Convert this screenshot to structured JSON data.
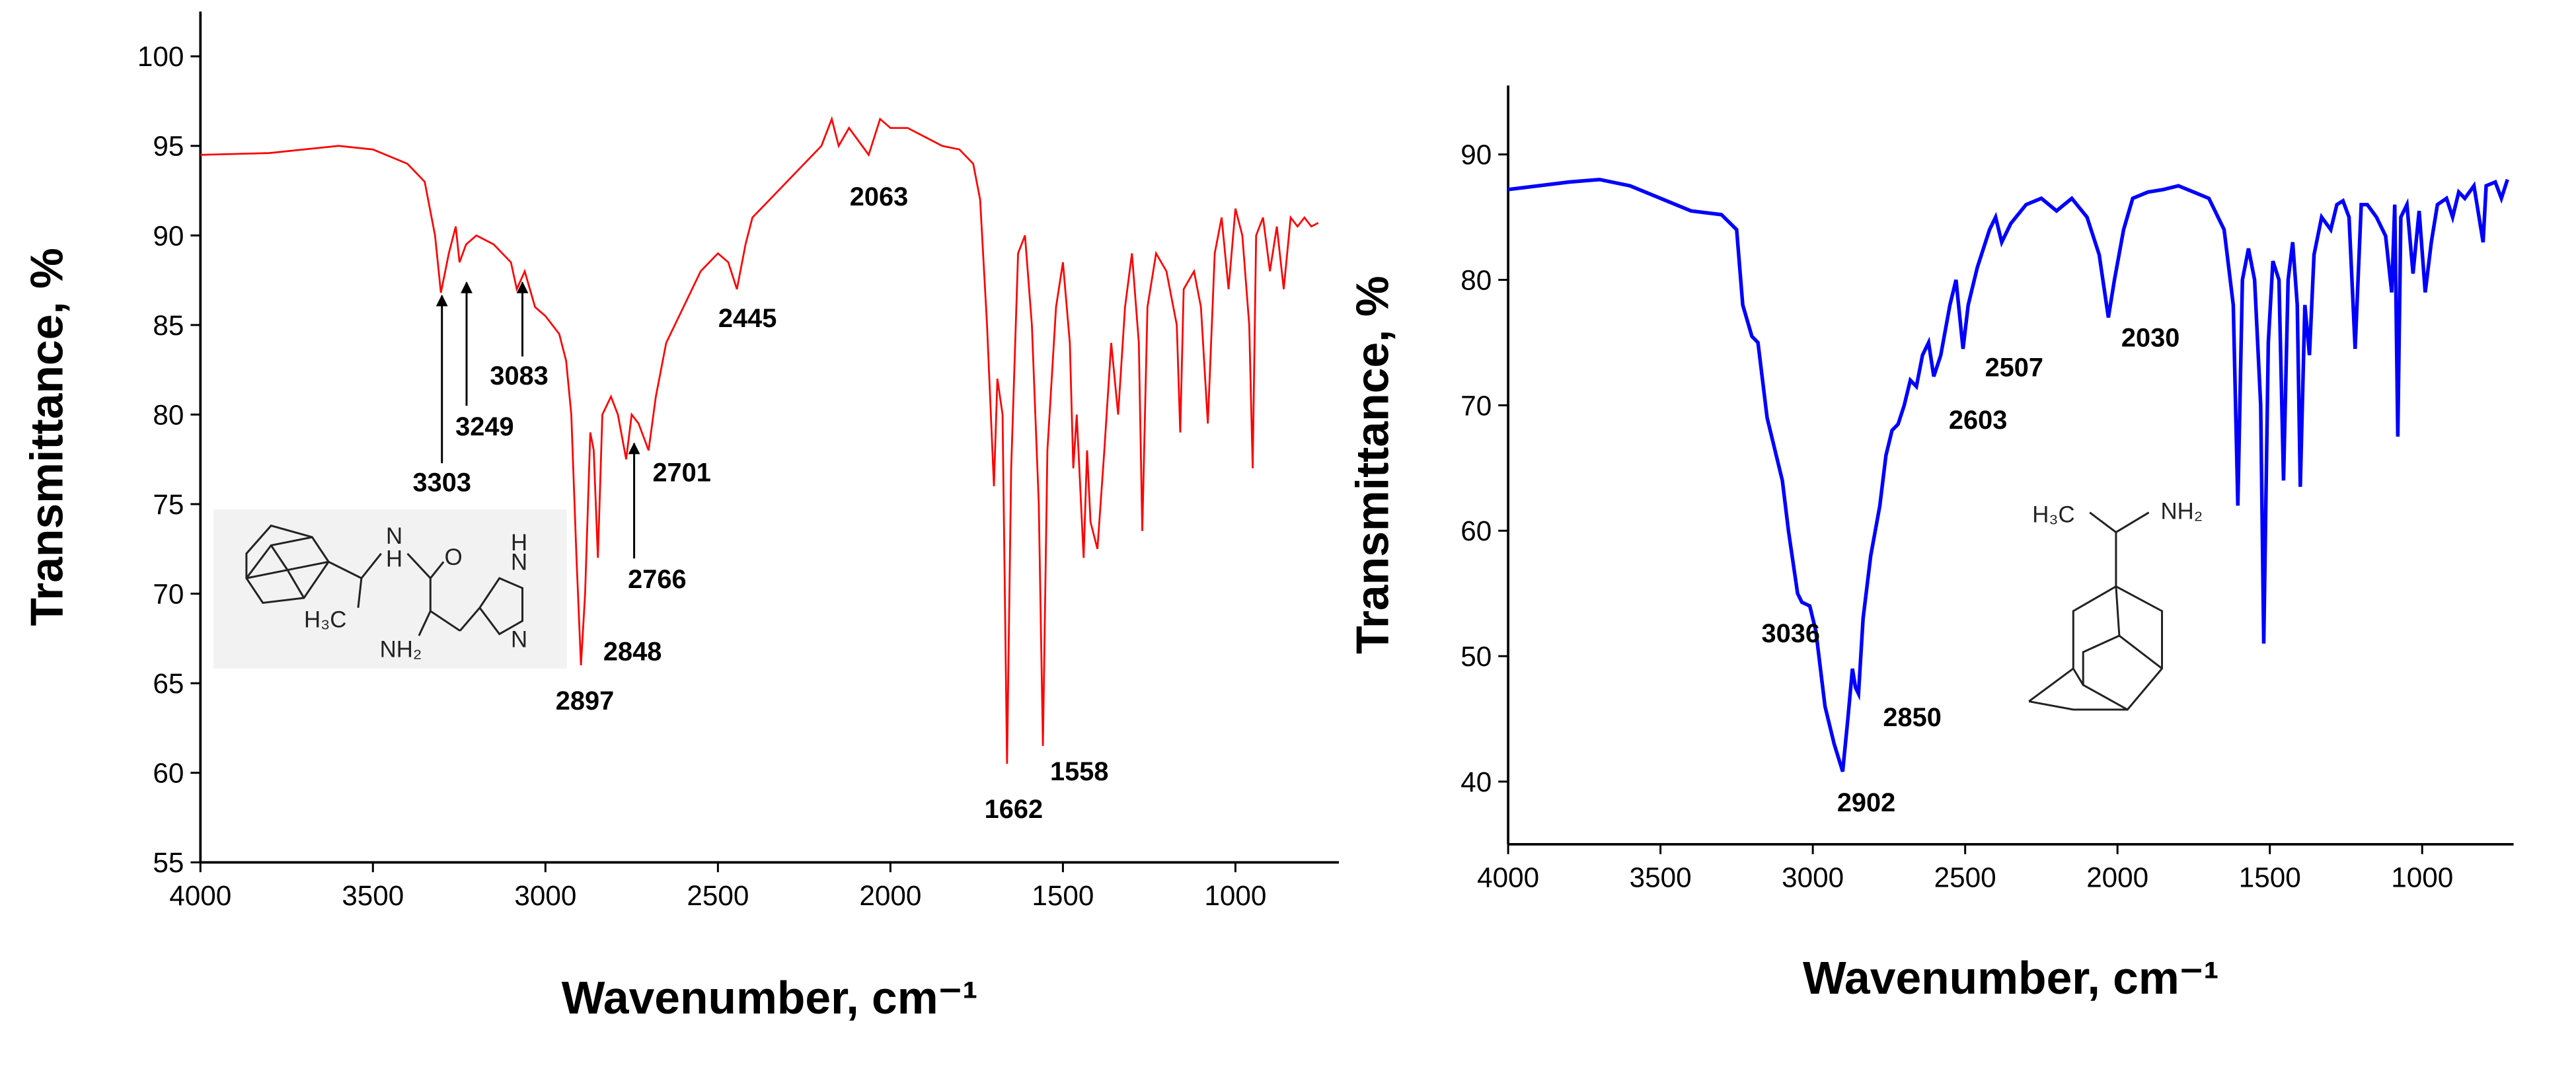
{
  "chart_data": [
    {
      "type": "line",
      "x_label": "Wavenumber, cm⁻¹",
      "y_label": "Transmittance, %",
      "xlim": [
        4000,
        700
      ],
      "xticks": [
        4000,
        3500,
        3000,
        2500,
        2000,
        1500,
        1000
      ],
      "ylim": [
        55,
        102.5
      ],
      "yticks": [
        55,
        60,
        65,
        70,
        75,
        80,
        85,
        90,
        95,
        100
      ],
      "x": [
        4000,
        3800,
        3600,
        3500,
        3400,
        3350,
        3320,
        3303,
        3280,
        3260,
        3249,
        3230,
        3200,
        3150,
        3100,
        3083,
        3060,
        3030,
        3000,
        2980,
        2960,
        2940,
        2925,
        2910,
        2897,
        2885,
        2870,
        2860,
        2848,
        2835,
        2810,
        2790,
        2766,
        2750,
        2730,
        2701,
        2680,
        2650,
        2600,
        2550,
        2500,
        2470,
        2445,
        2420,
        2400,
        2350,
        2300,
        2250,
        2200,
        2170,
        2150,
        2120,
        2063,
        2030,
        2000,
        1950,
        1900,
        1850,
        1800,
        1760,
        1740,
        1720,
        1700,
        1690,
        1675,
        1662,
        1650,
        1630,
        1610,
        1590,
        1570,
        1558,
        1545,
        1520,
        1500,
        1480,
        1470,
        1460,
        1440,
        1430,
        1420,
        1400,
        1380,
        1360,
        1340,
        1320,
        1300,
        1280,
        1270,
        1255,
        1230,
        1200,
        1170,
        1160,
        1150,
        1120,
        1100,
        1080,
        1060,
        1040,
        1020,
        1000,
        980,
        960,
        950,
        940,
        920,
        900,
        880,
        860,
        840,
        820,
        800,
        780,
        760
      ],
      "series": [
        {
          "name": "spectrum",
          "color": "#ff0000",
          "values": [
            94.5,
            94.6,
            95,
            94.8,
            94,
            93,
            90,
            86.8,
            89,
            90.5,
            88.5,
            89.5,
            90,
            89.5,
            88.5,
            87,
            88,
            86,
            85.5,
            85,
            84.5,
            83,
            80,
            72,
            66,
            70,
            79,
            78,
            72,
            80,
            81,
            80,
            77.5,
            80,
            79.5,
            78,
            81,
            84,
            86,
            88,
            89,
            88.5,
            87,
            89.5,
            91,
            92,
            93,
            94,
            95,
            96.5,
            95,
            96,
            94.5,
            96.5,
            96,
            96,
            95.5,
            95,
            94.8,
            94,
            92,
            85,
            76,
            82,
            80,
            60.5,
            77,
            89,
            90,
            85,
            75,
            61.5,
            78,
            86,
            88.5,
            84,
            77,
            80,
            72,
            78,
            74,
            72.5,
            78,
            84,
            80,
            86,
            89,
            84,
            73.5,
            86,
            89,
            88,
            85,
            79,
            87,
            88,
            86,
            79.5,
            89,
            91,
            87,
            91.5,
            90,
            85,
            77,
            90,
            91,
            88,
            90.5,
            87,
            91,
            90.5,
            91,
            90.5,
            90.7
          ]
        }
      ],
      "peak_labels": [
        3303,
        3249,
        3083,
        2897,
        2848,
        2766,
        2701,
        2445,
        2063,
        1662,
        1558
      ],
      "structure_labels": [
        "N",
        "H",
        "O",
        "H₃C",
        "NH₂",
        "N",
        "N",
        "H"
      ]
    },
    {
      "type": "line",
      "x_label": "Wavenumber, cm⁻¹",
      "y_label": "Transmittance, %",
      "xlim": [
        4000,
        700
      ],
      "xticks": [
        4000,
        3500,
        3000,
        2500,
        2000,
        1500,
        1000
      ],
      "ylim": [
        35,
        95.5
      ],
      "yticks": [
        40,
        50,
        60,
        70,
        80,
        90
      ],
      "x": [
        4000,
        3800,
        3700,
        3600,
        3500,
        3400,
        3300,
        3250,
        3230,
        3200,
        3180,
        3150,
        3100,
        3080,
        3050,
        3036,
        3010,
        2990,
        2960,
        2930,
        2902,
        2885,
        2870,
        2860,
        2850,
        2835,
        2810,
        2780,
        2760,
        2740,
        2720,
        2700,
        2680,
        2660,
        2640,
        2620,
        2603,
        2580,
        2550,
        2530,
        2507,
        2490,
        2460,
        2420,
        2400,
        2380,
        2350,
        2300,
        2250,
        2200,
        2150,
        2100,
        2060,
        2030,
        2010,
        1980,
        1950,
        1900,
        1850,
        1800,
        1750,
        1700,
        1650,
        1620,
        1605,
        1590,
        1570,
        1550,
        1530,
        1520,
        1505,
        1490,
        1470,
        1455,
        1440,
        1425,
        1410,
        1400,
        1385,
        1370,
        1355,
        1330,
        1300,
        1280,
        1260,
        1240,
        1220,
        1200,
        1180,
        1150,
        1120,
        1100,
        1090,
        1080,
        1070,
        1050,
        1030,
        1010,
        990,
        970,
        950,
        920,
        900,
        880,
        860,
        830,
        800,
        790,
        760,
        740,
        720
      ],
      "series": [
        {
          "name": "spectrum",
          "color": "#0000ff",
          "values": [
            87.2,
            87.8,
            88,
            87.5,
            86.5,
            85.5,
            85.2,
            84,
            78,
            75.5,
            75,
            69,
            64,
            60,
            55,
            54.3,
            54,
            52,
            46,
            43,
            40.8,
            45,
            49,
            47.5,
            47,
            53,
            58,
            62,
            66,
            68,
            68.5,
            70,
            72,
            71.5,
            74,
            75,
            72.3,
            74,
            78,
            80,
            74.5,
            78,
            81,
            84,
            85,
            83,
            84.5,
            86,
            86.5,
            85.5,
            86.5,
            85,
            82,
            77,
            80,
            84,
            86.5,
            87,
            87.2,
            87.5,
            87,
            86.5,
            84,
            78,
            62,
            80,
            82.5,
            80,
            70,
            51,
            75,
            81.5,
            80,
            64,
            80,
            83,
            78,
            63.5,
            78,
            74,
            82,
            85,
            84,
            86,
            86.3,
            85,
            74.5,
            86,
            86,
            85,
            83.5,
            79,
            86,
            67.5,
            85,
            86,
            80.5,
            85.5,
            79,
            83,
            86,
            86.5,
            85,
            87,
            86.5,
            87.5,
            83,
            87.5,
            87.8,
            86.5,
            88
          ]
        }
      ],
      "peak_labels": [
        3036,
        2902,
        2850,
        2603,
        2507,
        2030
      ],
      "structure_labels": [
        "H₃C",
        "NH₂"
      ]
    }
  ]
}
